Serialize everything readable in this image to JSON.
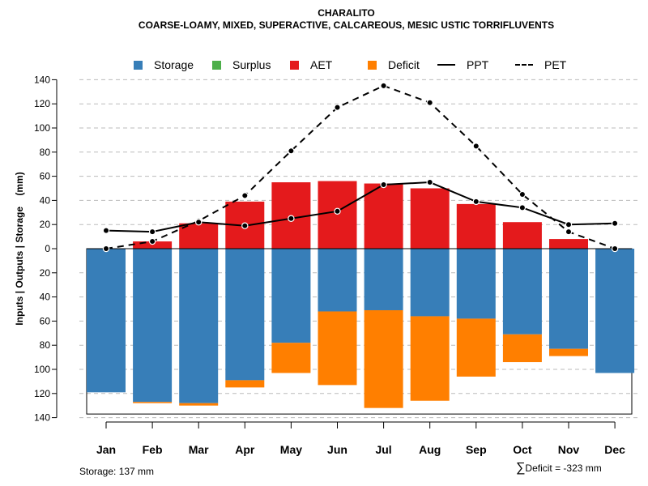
{
  "title": "CHARALITO",
  "subtitle": "COARSE-LOAMY, MIXED, SUPERACTIVE, CALCAREOUS, MESIC USTIC TORRIFLUVENTS",
  "legend": {
    "storage": "Storage",
    "surplus": "Surplus",
    "aet": "AET",
    "deficit": "Deficit",
    "ppt": "PPT",
    "pet": "PET"
  },
  "colors": {
    "storage": "#377eb8",
    "surplus": "#4daf4a",
    "aet": "#e41a1c",
    "deficit": "#ff7f00",
    "grid": "#bbbbbb"
  },
  "footer": {
    "storage_note": "Storage: 137 mm",
    "deficit_symbol": "∑",
    "deficit_note": "Deficit = -323 mm"
  },
  "chart_data": {
    "type": "bar",
    "ylabel": "Inputs | Outputs | Storage    (mm)",
    "ylim": [
      -140,
      140
    ],
    "yticks": [
      140,
      120,
      100,
      80,
      60,
      40,
      20,
      0,
      20,
      40,
      60,
      80,
      100,
      120,
      140
    ],
    "yticks_values": [
      140,
      120,
      100,
      80,
      60,
      40,
      20,
      0,
      -20,
      -40,
      -60,
      -80,
      -100,
      -120,
      -140
    ],
    "storage_capacity": 137,
    "categories": [
      "Jan",
      "Feb",
      "Mar",
      "Apr",
      "May",
      "Jun",
      "Jul",
      "Aug",
      "Sep",
      "Oct",
      "Nov",
      "Dec"
    ],
    "aet": [
      0,
      6,
      21,
      39,
      55,
      56,
      54,
      50,
      37,
      22,
      8,
      0
    ],
    "storage": [
      119,
      127,
      128,
      109,
      78,
      52,
      51,
      56,
      58,
      71,
      83,
      103
    ],
    "surplus": [
      0,
      0,
      0,
      0,
      0,
      0,
      0,
      0,
      0,
      0,
      0,
      0
    ],
    "deficit": [
      0,
      1,
      2,
      6,
      25,
      61,
      81,
      70,
      48,
      23,
      6,
      0
    ],
    "ppt": [
      15,
      14,
      22,
      19,
      25,
      31,
      53,
      55,
      39,
      34,
      20,
      21
    ],
    "pet": [
      0,
      6,
      23,
      44,
      81,
      117,
      135,
      121,
      85,
      45,
      14,
      0
    ]
  }
}
